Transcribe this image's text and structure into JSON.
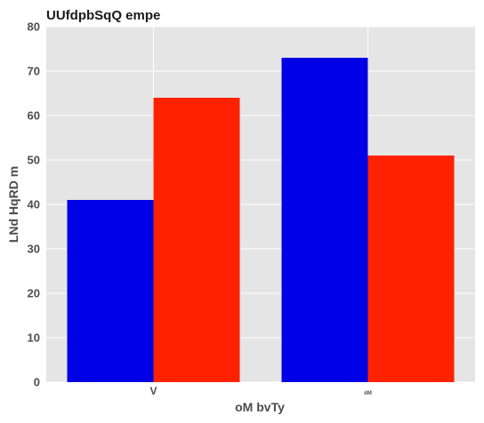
{
  "chart_data": {
    "type": "bar",
    "title": "UUfdpbSqQ empe",
    "xlabel": "oM bvTy",
    "ylabel": "LNd HqRD m",
    "categories": [
      "V",
      "dM"
    ],
    "series": [
      {
        "values": [
          41,
          73
        ],
        "color": "#0000e6"
      },
      {
        "values": [
          64,
          51
        ],
        "color": "#ff2200"
      }
    ],
    "ylim": [
      0,
      80
    ],
    "yticks": [
      0,
      10,
      20,
      30,
      40,
      50,
      60,
      70,
      80
    ],
    "grid": true,
    "legend": "none",
    "plot_background": "#e5e5e5",
    "grid_color": "#ffffff"
  }
}
